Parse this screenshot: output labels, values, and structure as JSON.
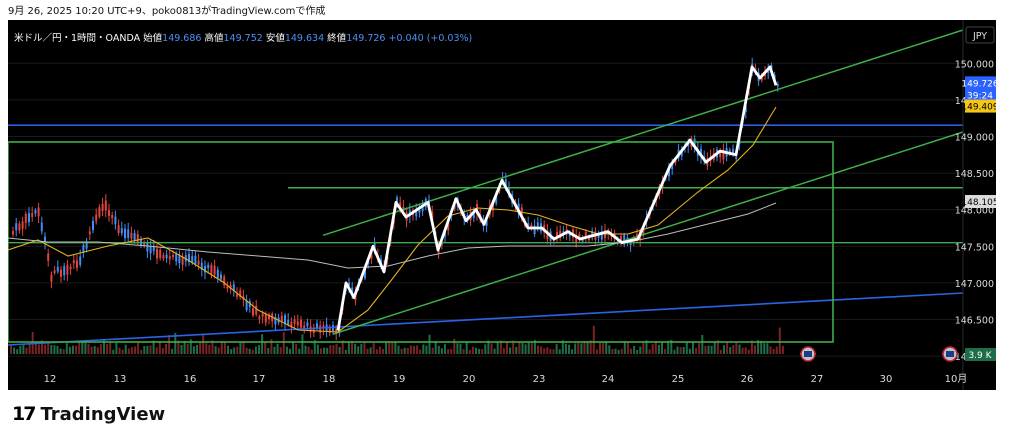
{
  "caption": "9月 26, 2025 10:20 UTC+9、poko0813がTradingView.comで作成",
  "legend": {
    "symbol": "米ドル／円・1時間・OANDA",
    "open_label": "始値",
    "open": "149.686",
    "high_label": "高値",
    "high": "149.752",
    "low_label": "安値",
    "low": "149.634",
    "close_label": "終値",
    "close": "149.726",
    "change": "+0.040 (+0.03%)"
  },
  "currency_button": "JPY",
  "price_badges": {
    "last": "149.726",
    "countdown": "39:24",
    "ma_fast": "149.409",
    "ma_slow": "148.105"
  },
  "volume_badge": "3.9 K",
  "brand": "TradingView",
  "colors": {
    "up": "#3f8ff5",
    "down": "#e5443b",
    "zigzag": "#ffffff",
    "channel": "#3fae49",
    "hline_blue": "#2d5be8",
    "trend_blue": "#2a63e6",
    "ma_fast": "#e6b020",
    "ma_slow": "#bdbdbd",
    "volume_up": "#1f6e4a",
    "volume_down": "#7a2323"
  },
  "chart_data": {
    "type": "line",
    "instrument": "USD/JPY 1H OANDA",
    "x_ticks": [
      "12",
      "13",
      "16",
      "17",
      "18",
      "19",
      "20",
      "23",
      "24",
      "25",
      "26",
      "27",
      "30",
      "10月"
    ],
    "y_ticks": [
      "150.000",
      "149.500",
      "149.000",
      "148.500",
      "148.000",
      "147.500",
      "147.000",
      "146.500",
      "146.000"
    ],
    "ylim": [
      145.8,
      150.35
    ],
    "zigzag": [
      {
        "x": "18",
        "y": 146.35
      },
      {
        "x": "18",
        "y": 147.0
      },
      {
        "x": "18",
        "y": 146.8
      },
      {
        "x": "18",
        "y": 147.5
      },
      {
        "x": "18",
        "y": 147.15
      },
      {
        "x": "19",
        "y": 148.1
      },
      {
        "x": "19",
        "y": 147.9
      },
      {
        "x": "19",
        "y": 148.1
      },
      {
        "x": "19",
        "y": 147.45
      },
      {
        "x": "20",
        "y": 148.15
      },
      {
        "x": "20",
        "y": 147.85
      },
      {
        "x": "20",
        "y": 148.0
      },
      {
        "x": "20",
        "y": 147.8
      },
      {
        "x": "20",
        "y": 148.4
      },
      {
        "x": "23",
        "y": 147.75
      },
      {
        "x": "23",
        "y": 147.75
      },
      {
        "x": "23",
        "y": 147.6
      },
      {
        "x": "23",
        "y": 147.7
      },
      {
        "x": "24",
        "y": 147.6
      },
      {
        "x": "24",
        "y": 147.7
      },
      {
        "x": "24",
        "y": 147.55
      },
      {
        "x": "24",
        "y": 147.6
      },
      {
        "x": "25",
        "y": 148.6
      },
      {
        "x": "25",
        "y": 148.95
      },
      {
        "x": "25",
        "y": 148.65
      },
      {
        "x": "25",
        "y": 148.8
      },
      {
        "x": "26",
        "y": 148.75
      },
      {
        "x": "26",
        "y": 149.95
      },
      {
        "x": "26",
        "y": 149.8
      },
      {
        "x": "26",
        "y": 149.95
      },
      {
        "x": "26",
        "y": 149.7
      }
    ],
    "ma_fast_last": 149.409,
    "ma_slow_last": 148.105,
    "last_price": 149.726,
    "volume_last": "3.9 K",
    "grid": false
  }
}
